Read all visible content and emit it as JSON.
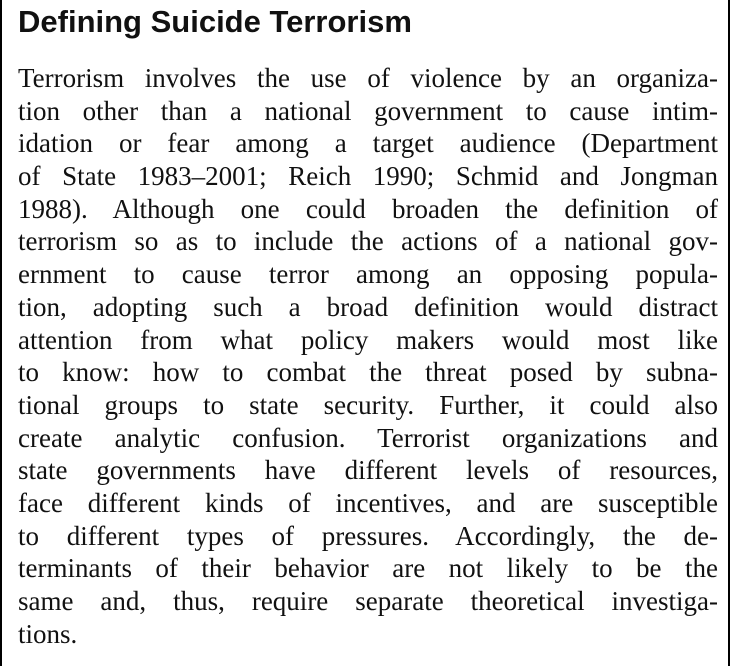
{
  "heading": "Defining Suicide Terrorism",
  "paragraph_lines": [
    "Terrorism involves the use of violence by an organiza-",
    "tion other than a national government to cause intim-",
    "idation or fear among a target audience (Department",
    "of State 1983–2001; Reich 1990; Schmid and Jongman",
    "1988). Although one could broaden the definition of",
    "terrorism so as to include the actions of a national gov-",
    "ernment to cause terror among an opposing popula-",
    "tion, adopting such a broad definition would distract",
    "attention from what policy makers would most like",
    "to know: how to combat the threat posed by subna-",
    "tional groups to state security. Further, it could also",
    "create analytic confusion. Terrorist organizations and",
    "state governments have different levels of resources,",
    "face different kinds of incentives, and are susceptible",
    "to different types of pressures. Accordingly, the de-",
    "terminants of their behavior are not likely to be the",
    "same and, thus, require separate theoretical investiga-",
    "tions."
  ]
}
